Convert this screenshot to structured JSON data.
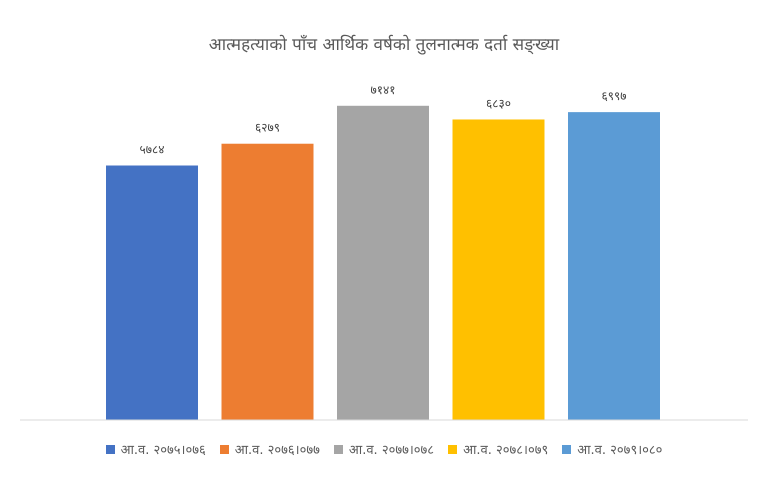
{
  "chart_data": {
    "type": "bar",
    "title": "आत्महत्याको पाँच आर्थिक वर्षको तुलनात्मक दर्ता सङ्ख्या",
    "xlabel": "",
    "ylabel": "",
    "ylim": [
      0,
      8000
    ],
    "grid": false,
    "legend": "bottom",
    "categories": [
      "आ.व. २०७५।०७६",
      "आ.व. २०७६।०७७",
      "आ.व. २०७७।०७८",
      "आ.व. २०७८।०७९",
      "आ.व. २०७९।०८०"
    ],
    "values": [
      5784,
      6279,
      7141,
      6830,
      6997
    ],
    "labels": [
      "५७८४",
      "६२७९",
      "७१४१",
      "६८३०",
      "६९९७"
    ],
    "colors": [
      "#4472C4",
      "#ED7D31",
      "#A5A5A5",
      "#FFC000",
      "#5B9BD5"
    ]
  }
}
